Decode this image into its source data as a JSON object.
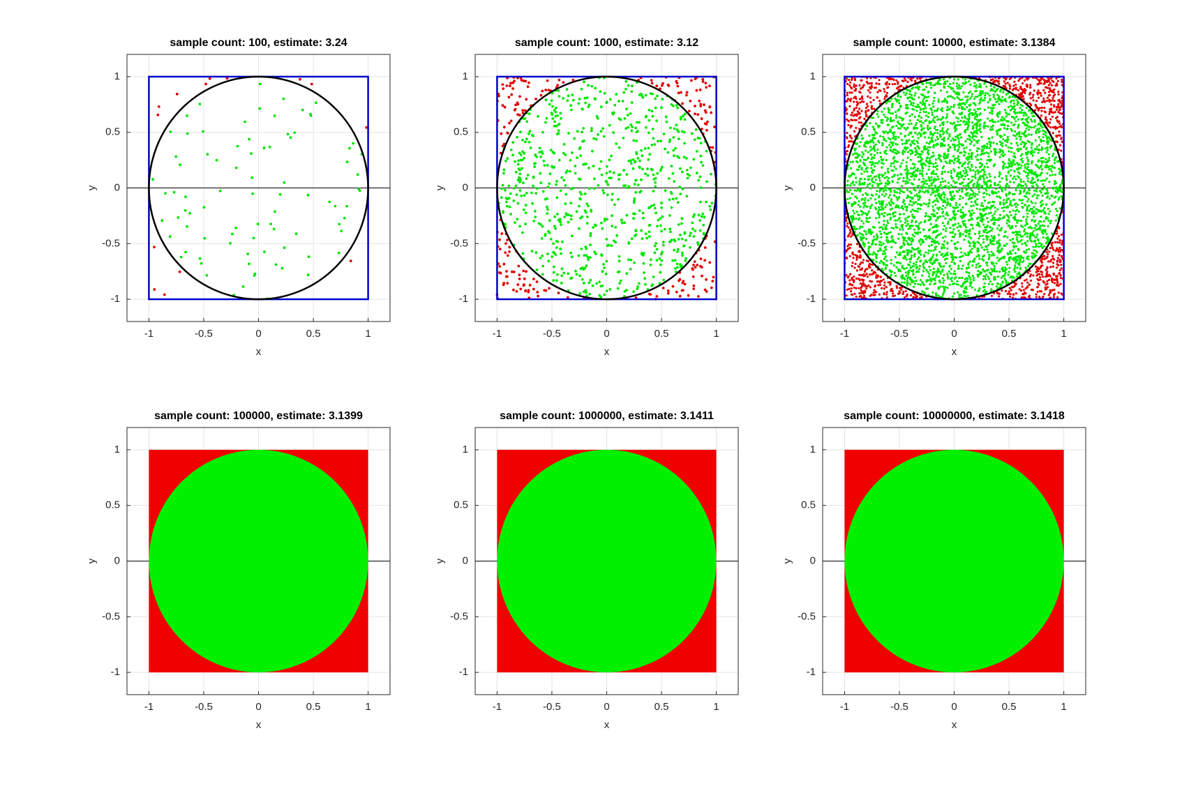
{
  "chart_data": [
    {
      "type": "scatter",
      "title": "sample count: 100, estimate: 3.24",
      "sample_count": 100,
      "xlabel": "x",
      "ylabel": "y",
      "xlim": [
        -1.2,
        1.2
      ],
      "ylim": [
        -1.2,
        1.2
      ],
      "xticks": [
        -1,
        -0.5,
        0,
        0.5,
        1
      ],
      "yticks": [
        -1,
        -0.5,
        0,
        0.5,
        1
      ],
      "grid": true,
      "inside_color": "#00e600",
      "outside_color": "#e00000",
      "square_color": "#0000c8",
      "circle_color": "#000000"
    },
    {
      "type": "scatter",
      "title": "sample count: 1000, estimate: 3.12",
      "sample_count": 1000,
      "xlabel": "x",
      "ylabel": "y",
      "xlim": [
        -1.2,
        1.2
      ],
      "ylim": [
        -1.2,
        1.2
      ],
      "xticks": [
        -1,
        -0.5,
        0,
        0.5,
        1
      ],
      "yticks": [
        -1,
        -0.5,
        0,
        0.5,
        1
      ],
      "grid": true,
      "inside_color": "#00e600",
      "outside_color": "#e00000",
      "square_color": "#0000c8",
      "circle_color": "#000000"
    },
    {
      "type": "scatter",
      "title": "sample count: 10000, estimate: 3.1384",
      "sample_count": 10000,
      "xlabel": "x",
      "ylabel": "y",
      "xlim": [
        -1.2,
        1.2
      ],
      "ylim": [
        -1.2,
        1.2
      ],
      "xticks": [
        -1,
        -0.5,
        0,
        0.5,
        1
      ],
      "yticks": [
        -1,
        -0.5,
        0,
        0.5,
        1
      ],
      "grid": true,
      "inside_color": "#00e600",
      "outside_color": "#e00000",
      "square_color": "#0000c8",
      "circle_color": "#000000"
    },
    {
      "type": "scatter",
      "title": "sample count: 100000, estimate: 3.1399",
      "sample_count": 100000,
      "xlabel": "x",
      "ylabel": "y",
      "xlim": [
        -1.2,
        1.2
      ],
      "ylim": [
        -1.2,
        1.2
      ],
      "xticks": [
        -1,
        -0.5,
        0,
        0.5,
        1
      ],
      "yticks": [
        -1,
        -0.5,
        0,
        0.5,
        1
      ],
      "grid": true,
      "inside_color": "#00f000",
      "outside_color": "#f00000",
      "square_color": "#0000c8",
      "circle_color": "#000000"
    },
    {
      "type": "scatter",
      "title": "sample count: 1000000, estimate: 3.1411",
      "sample_count": 1000000,
      "xlabel": "x",
      "ylabel": "y",
      "xlim": [
        -1.2,
        1.2
      ],
      "ylim": [
        -1.2,
        1.2
      ],
      "xticks": [
        -1,
        -0.5,
        0,
        0.5,
        1
      ],
      "yticks": [
        -1,
        -0.5,
        0,
        0.5,
        1
      ],
      "grid": true,
      "inside_color": "#00f000",
      "outside_color": "#f00000",
      "square_color": "#0000c8",
      "circle_color": "#000000"
    },
    {
      "type": "scatter",
      "title": "sample count: 10000000, estimate: 3.1418",
      "sample_count": 10000000,
      "xlabel": "x",
      "ylabel": "y",
      "xlim": [
        -1.2,
        1.2
      ],
      "ylim": [
        -1.2,
        1.2
      ],
      "xticks": [
        -1,
        -0.5,
        0,
        0.5,
        1
      ],
      "yticks": [
        -1,
        -0.5,
        0,
        0.5,
        1
      ],
      "grid": true,
      "inside_color": "#00f000",
      "outside_color": "#f00000",
      "square_color": "#0000c8",
      "circle_color": "#000000"
    }
  ]
}
